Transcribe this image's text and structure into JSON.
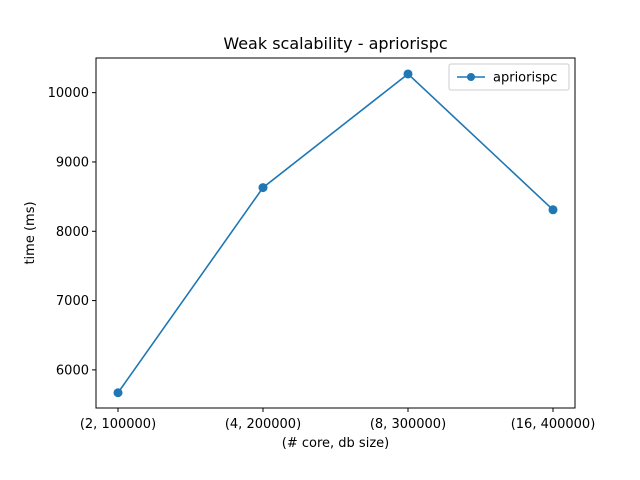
{
  "chart_data": {
    "type": "line",
    "title": "Weak scalability - apriorispc",
    "xlabel": "(# core, db size)",
    "ylabel": "time (ms)",
    "categories": [
      "(2, 100000)",
      "(4, 200000)",
      "(8, 300000)",
      "(16, 400000)"
    ],
    "series": [
      {
        "name": "apriorispc",
        "values": [
          5670,
          8630,
          10270,
          8310
        ]
      }
    ],
    "yticks": [
      6000,
      7000,
      8000,
      9000,
      10000
    ],
    "ylim": [
      5450,
      10500
    ],
    "grid": false,
    "legend_position": "top-right",
    "color": "#1f77b4"
  }
}
